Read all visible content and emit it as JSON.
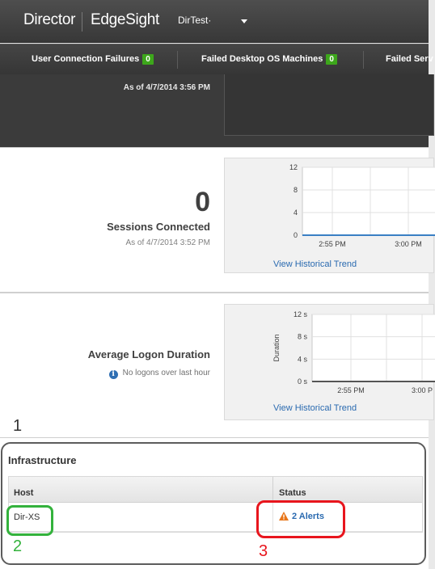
{
  "header": {
    "brand_primary": "Director",
    "brand_secondary": "EdgeSight",
    "site_selector": "DirTest·"
  },
  "alert_bar": {
    "items": [
      {
        "label": "User Connection Failures",
        "count": "0"
      },
      {
        "label": "Failed Desktop OS Machines",
        "count": "0"
      },
      {
        "label": "Failed Serv",
        "count": ""
      }
    ]
  },
  "top_panel": {
    "as_of": "As of 4/7/2014 3:56 PM"
  },
  "sessions_panel": {
    "value": "0",
    "title": "Sessions Connected",
    "as_of": "As of 4/7/2014 3:52 PM",
    "link": "View Historical Trend",
    "chart_data": {
      "type": "line",
      "x": [
        "2:55 PM",
        "3:00 PM"
      ],
      "xticks": [
        "2:55 PM",
        "3:00 PM"
      ],
      "yticks": [
        "12",
        "8",
        "4",
        "0"
      ],
      "ylim": [
        0,
        12
      ],
      "series": [
        {
          "values": [
            0,
            0
          ]
        }
      ],
      "grid": true,
      "line_color": "#3a7fc4"
    }
  },
  "logon_panel": {
    "title": "Average Logon Duration",
    "message": "No logons over last hour",
    "link": "View Historical Trend",
    "chart_data": {
      "type": "line",
      "x": [
        "2:55 PM",
        "3:00 P"
      ],
      "xticks": [
        "2:55 PM",
        "3:00 P"
      ],
      "yticks": [
        "12 s",
        "8 s",
        "4 s",
        "0 s"
      ],
      "ylabel": "Duration",
      "ylim": [
        0,
        12
      ],
      "series": [
        {
          "values": [
            0,
            0
          ]
        }
      ],
      "grid": true,
      "line_color": "#555555"
    }
  },
  "infrastructure": {
    "title": "Infrastructure",
    "columns": [
      "Host",
      "Status"
    ],
    "rows": [
      {
        "host": "Dir-XS",
        "status": "2 Alerts"
      }
    ]
  },
  "annotations": {
    "one": "1",
    "two": "2",
    "three": "3"
  },
  "colors": {
    "header_bg": "#3f3f3f",
    "badge_green": "#3da71b",
    "link_blue": "#2a6ab0",
    "annot_gray": "#5c5c5c",
    "annot_green": "#33b23c",
    "annot_red": "#e8151d",
    "warning_orange": "#e8761a"
  }
}
